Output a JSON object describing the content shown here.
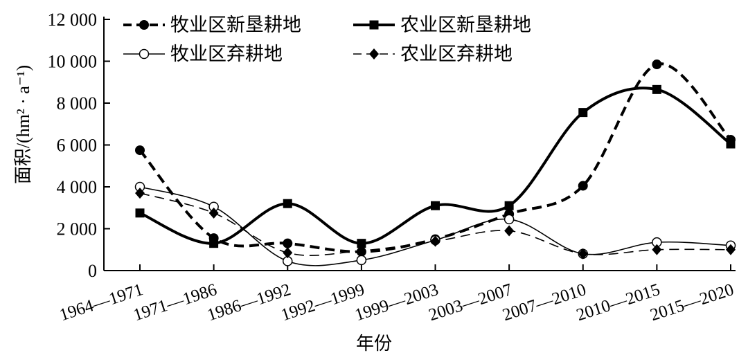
{
  "chart_data": {
    "type": "line",
    "categories": [
      "1964—1971",
      "1971—1986",
      "1986—1992",
      "1992—1999",
      "1999—2003",
      "2003—2007",
      "2007—2010",
      "2010—2015",
      "2015—2020"
    ],
    "xlabel": "年份",
    "ylabel": "面积/(hm² · a⁻¹)",
    "ylim": [
      0,
      12000
    ],
    "yticks": [
      0,
      2000,
      4000,
      6000,
      8000,
      10000,
      12000
    ],
    "ytick_labels": [
      "0",
      "2 000",
      "4 000",
      "6 000",
      "8 000",
      "10 000",
      "12 000"
    ],
    "grid": false,
    "legend": "top",
    "series": [
      {
        "name": "牧业区新垦耕地",
        "marker": "filled-circle",
        "line": "thick-dashed",
        "values": [
          5750,
          1550,
          1300,
          900,
          1500,
          2700,
          4050,
          9850,
          6250
        ]
      },
      {
        "name": "农业区新垦耕地",
        "marker": "filled-square",
        "line": "thick-solid",
        "values": [
          2750,
          1300,
          3200,
          1300,
          3100,
          3100,
          7550,
          8650,
          6050
        ]
      },
      {
        "name": "牧业区弃耕地",
        "marker": "open-circle",
        "line": "thin-solid",
        "values": [
          4000,
          3050,
          450,
          500,
          1450,
          2450,
          800,
          1350,
          1200
        ]
      },
      {
        "name": "农业区弃耕地",
        "marker": "filled-diamond",
        "line": "thin-dashed",
        "values": [
          3700,
          2750,
          850,
          950,
          1400,
          1900,
          800,
          1000,
          1000
        ]
      }
    ]
  }
}
